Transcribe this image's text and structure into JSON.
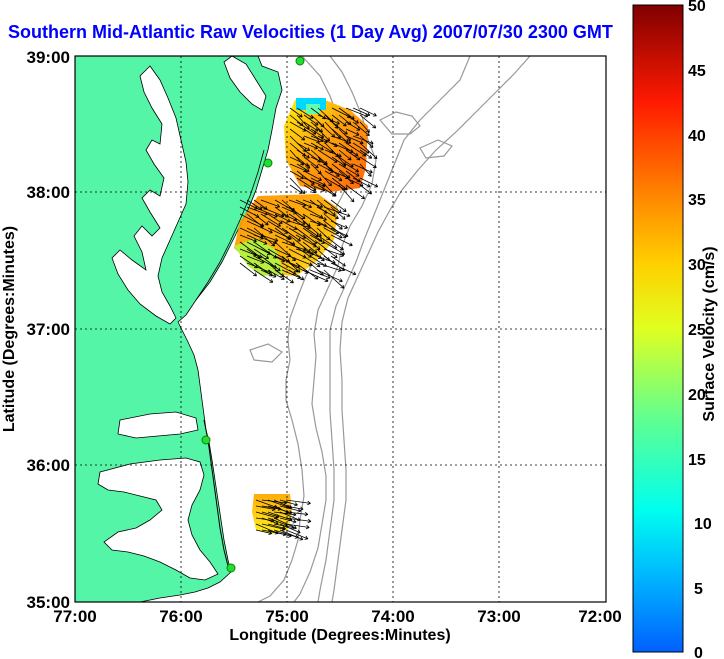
{
  "title": "Southern Mid-Atlantic Raw Velocities (1 Day Avg) 2007/07/30 2300 GMT",
  "axes": {
    "xlabel": "Longitude (Degrees:Minutes)",
    "ylabel": "Latitude (Degrees:Minutes)",
    "x_ticks": [
      "77:00",
      "76:00",
      "75:00",
      "74:00",
      "73:00",
      "72:00"
    ],
    "y_ticks": [
      "39:00",
      "38:00",
      "37:00",
      "36:00",
      "35:00"
    ]
  },
  "colorbar": {
    "label": "Surface Velocity (cm/s)",
    "ticks": [
      "50",
      "45",
      "40",
      "35",
      "30",
      "25",
      "20",
      "15",
      "10",
      "5",
      "0"
    ],
    "min": 0,
    "max": 50
  },
  "colors": {
    "land": "#55f5a8",
    "title": "#0000ff",
    "bathymetry": "#999999"
  },
  "stations": [
    {
      "name": "station-1"
    },
    {
      "name": "station-2"
    },
    {
      "name": "station-3"
    },
    {
      "name": "station-4"
    }
  ]
}
